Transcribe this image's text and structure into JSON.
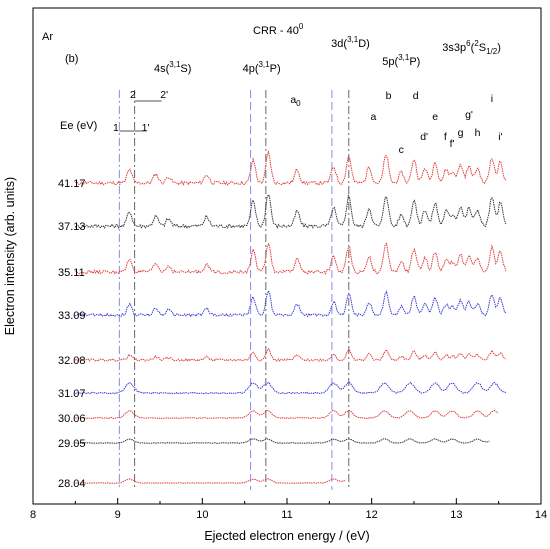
{
  "chart_data": {
    "type": "line",
    "xlabel": "Ejected electron energy / (eV)",
    "ylabel": "Electron intensity (arb. units)",
    "xlim": [
      8,
      14
    ],
    "x_ticks": [
      "8",
      "9",
      "10",
      "11",
      "12",
      "13",
      "14"
    ],
    "grid": false,
    "legend": "none",
    "atom": "Ar",
    "panel": "(b)",
    "condition": "CRR - 40",
    "condition_sup": "0",
    "energy_header": "Ee (eV)",
    "series_energy_range": [
      8.5,
      13.6
    ],
    "series": [
      {
        "name": "41.17",
        "color": "#e03c3c",
        "x_end": 13.6
      },
      {
        "name": "37.13",
        "color": "#333333",
        "x_end": 13.6
      },
      {
        "name": "35.11",
        "color": "#e03c3c",
        "x_end": 13.6
      },
      {
        "name": "33.09",
        "color": "#3a3ad6",
        "x_end": 13.6
      },
      {
        "name": "32.08",
        "color": "#e03c3c",
        "x_end": 13.6
      },
      {
        "name": "31.07",
        "color": "#3a3ad6",
        "x_end": 13.6
      },
      {
        "name": "30.06",
        "color": "#e03c3c",
        "x_end": 13.5
      },
      {
        "name": "29.05",
        "color": "#333333",
        "x_end": 13.4
      },
      {
        "name": "28.04",
        "color": "#e03c3c",
        "x_end": 11.7
      }
    ],
    "reference_lines": [
      {
        "x": 9.02,
        "style": "dash-dot",
        "color": "#8a8ae8"
      },
      {
        "x": 9.2,
        "style": "dash-dot",
        "color": "#666666"
      },
      {
        "x": 10.57,
        "style": "dashed",
        "color": "#8a8ae8"
      },
      {
        "x": 10.75,
        "style": "dash-dot",
        "color": "#666666"
      },
      {
        "x": 11.53,
        "style": "dashed",
        "color": "#8a8ae8"
      },
      {
        "x": 11.73,
        "style": "dash-dot",
        "color": "#666666"
      }
    ],
    "group_labels": [
      {
        "text": "4s(",
        "sup": "3,1",
        "tail": "S)",
        "x": 9.65
      },
      {
        "text": "4p(",
        "sup": "3,1",
        "tail": "P)",
        "x": 10.7
      },
      {
        "text": "3d(",
        "sup": "3,1",
        "tail": "D)",
        "x": 11.75
      },
      {
        "text": "5p(",
        "sup": "3,1",
        "tail": "P)",
        "x": 12.35
      },
      {
        "text": "3s3p",
        "sup": "6",
        "tail": "(",
        "sup2": "2",
        "tail2": "S",
        "sub": "1/2",
        "tail3": ")",
        "x": 13.18
      }
    ],
    "peak_labels": [
      {
        "text": "1",
        "x": 8.98
      },
      {
        "text": "1'",
        "x": 9.33
      },
      {
        "text": "2",
        "x": 9.18
      },
      {
        "text": "2'",
        "x": 9.55
      },
      {
        "text": "a",
        "sub": "0",
        "x": 11.1
      },
      {
        "text": "a",
        "x": 12.02
      },
      {
        "text": "b",
        "x": 12.2
      },
      {
        "text": "c",
        "x": 12.35
      },
      {
        "text": "d",
        "x": 12.52
      },
      {
        "text": "d'",
        "x": 12.62
      },
      {
        "text": "e",
        "x": 12.75
      },
      {
        "text": "f",
        "x": 12.87
      },
      {
        "text": "f'",
        "x": 12.95
      },
      {
        "text": "g",
        "x": 13.05
      },
      {
        "text": "g'",
        "x": 13.15
      },
      {
        "text": "h",
        "x": 13.25
      },
      {
        "text": "i",
        "x": 13.42
      },
      {
        "text": "i'",
        "x": 13.52
      }
    ]
  }
}
